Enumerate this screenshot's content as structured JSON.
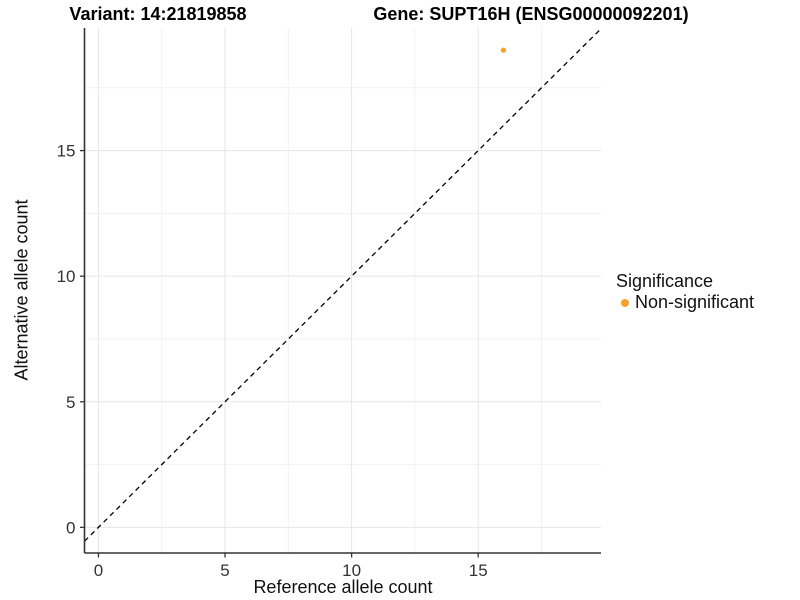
{
  "header": {
    "variant_title": "Variant: 14:21819858",
    "gene_title": "Gene: SUPT16H (ENSG00000092201)"
  },
  "chart_data": {
    "type": "scatter",
    "xlabel": "Reference allele count",
    "ylabel": "Alternative allele count",
    "points": [
      {
        "x": 16,
        "y": 19,
        "series": "Non-significant"
      }
    ],
    "series": [
      {
        "name": "Non-significant",
        "color": "#F9A02B"
      }
    ],
    "xticks": [
      0,
      5,
      10,
      15
    ],
    "yticks": [
      0,
      5,
      10,
      15
    ],
    "minor_gridlines": [
      2.5,
      7.5,
      12.5,
      17.5
    ],
    "xlim": [
      -0.55,
      19.85
    ],
    "ylim": [
      -1.02,
      19.88
    ],
    "identity_line": {
      "slope": 1,
      "intercept": 0,
      "style": "dashed",
      "color": "#000000"
    },
    "grid": {
      "major_color": "#e6e6e6",
      "minor_color": "#f2f2f2"
    },
    "axis_color": "#333333",
    "tick_label_color": "#333333",
    "point_radius": 2.6,
    "legend": {
      "title": "Significance",
      "position": "right",
      "items": [
        {
          "label": "Non-significant",
          "color": "#F9A02B"
        }
      ]
    }
  }
}
